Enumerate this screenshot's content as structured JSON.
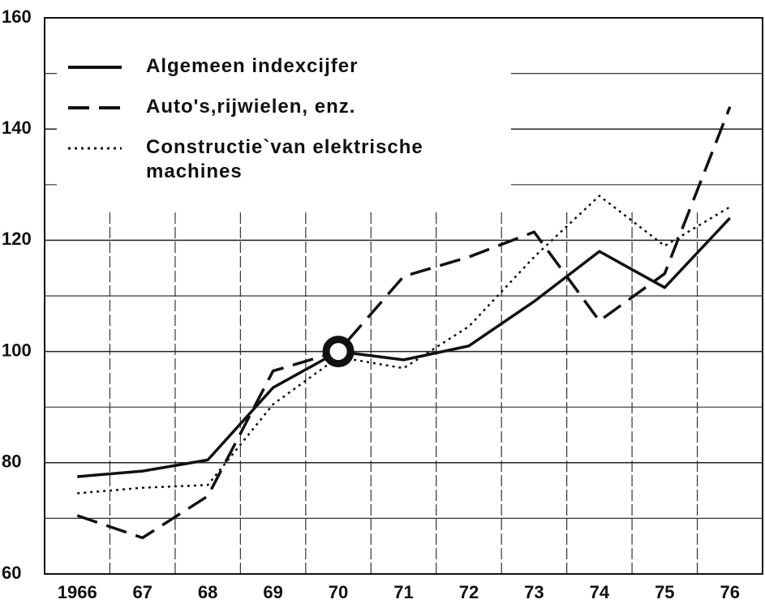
{
  "chart_data": {
    "type": "line",
    "categories": [
      "1966",
      "67",
      "68",
      "69",
      "70",
      "71",
      "72",
      "73",
      "74",
      "75",
      "76"
    ],
    "series": [
      {
        "name": "Algemeen indexcijfer",
        "color": "#111111",
        "style": "solid",
        "values": [
          77.5,
          78.5,
          80.5,
          93.5,
          100,
          98.5,
          101,
          109,
          118,
          111.5,
          124
        ]
      },
      {
        "name": "Auto's,rijwielen, enz.",
        "color": "#111111",
        "style": "dashed",
        "values": [
          70.5,
          66.5,
          74,
          96.5,
          100,
          113.5,
          117,
          121.5,
          105.5,
          114,
          144
        ]
      },
      {
        "name": "Constructie`van elektrische machines",
        "color": "#111111",
        "style": "dotted",
        "values": [
          74.5,
          75.5,
          76,
          90.5,
          99,
          97,
          104.5,
          117,
          128,
          119,
          126
        ]
      }
    ],
    "ylim": [
      60,
      160
    ],
    "yticks": [
      60,
      80,
      100,
      120,
      140,
      160
    ],
    "y_minor_ticks": [
      70,
      90,
      110,
      130,
      150
    ],
    "grid": true,
    "legend": "upper left"
  }
}
